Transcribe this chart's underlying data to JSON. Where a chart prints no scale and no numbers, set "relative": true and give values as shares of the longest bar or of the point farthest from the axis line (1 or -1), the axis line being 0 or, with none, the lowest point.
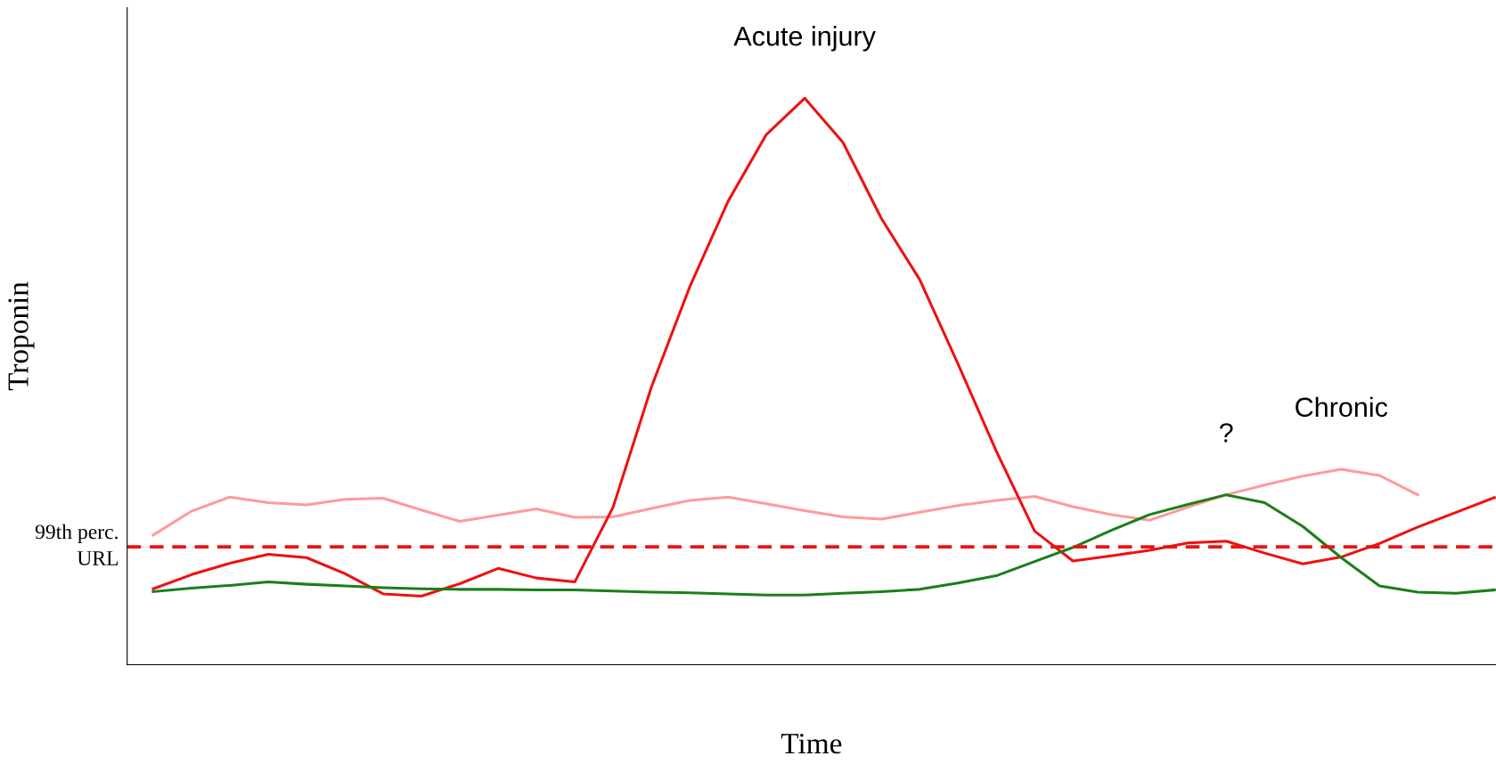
{
  "chart_data": {
    "type": "line",
    "relative": true,
    "xlabel": "Time",
    "ylabel": "Troponin",
    "tick_labels": false,
    "line_style": "solid",
    "categories": [
      null,
      null,
      null,
      null,
      null,
      null,
      null,
      null,
      null,
      null,
      null,
      null,
      null,
      null,
      null,
      null,
      null,
      null,
      null,
      null,
      null,
      null,
      null,
      null,
      null,
      null,
      null,
      null,
      null,
      null,
      null,
      null,
      null,
      null,
      null,
      null
    ],
    "series": [
      {
        "name": "Chronic",
        "color": "#ff9a9a",
        "values": [
          0.229,
          0.271,
          0.296,
          0.286,
          0.282,
          0.292,
          0.294,
          0.273,
          0.253,
          0.264,
          0.275,
          0.26,
          0.261,
          0.276,
          0.29,
          0.296,
          0.284,
          0.272,
          0.261,
          0.257,
          0.269,
          0.281,
          0.29,
          0.297,
          0.279,
          0.265,
          0.255,
          0.278,
          0.3,
          0.317,
          0.333,
          0.345,
          0.334,
          0.3,
          null,
          null
        ]
      },
      {
        "name": "Acute injury",
        "color": "#ee1111",
        "values": [
          0.134,
          0.159,
          0.179,
          0.195,
          0.189,
          0.161,
          0.125,
          0.121,
          0.143,
          0.17,
          0.153,
          0.146,
          0.278,
          0.49,
          0.667,
          0.818,
          0.936,
          1.0,
          0.922,
          0.788,
          0.68,
          0.531,
          0.377,
          0.236,
          0.183,
          0.192,
          0.202,
          0.215,
          0.218,
          0.197,
          0.178,
          0.19,
          0.214,
          0.243,
          0.269,
          0.295
        ]
      },
      {
        "name": "?",
        "color": "#1a7f1a",
        "values": [
          0.129,
          0.135,
          0.14,
          0.146,
          0.142,
          0.139,
          0.136,
          0.134,
          0.133,
          0.133,
          0.132,
          0.132,
          0.13,
          0.128,
          0.127,
          0.125,
          0.123,
          0.123,
          0.126,
          0.129,
          0.133,
          0.144,
          0.157,
          0.182,
          0.207,
          0.237,
          0.265,
          0.283,
          0.3,
          0.286,
          0.244,
          0.189,
          0.139,
          0.128,
          0.126,
          0.132
        ]
      }
    ],
    "ref_lines": [
      {
        "axis": "y",
        "value": 0.208,
        "label": "99th perc.\nURL",
        "color": "#ee1111",
        "line_style": "dashed"
      }
    ]
  }
}
